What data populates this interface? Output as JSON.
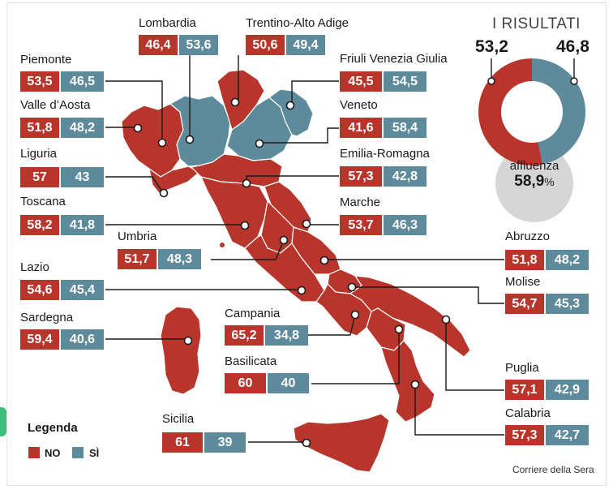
{
  "results": {
    "title": "I RISULTATI",
    "no_total": "53,2",
    "si_total": "46,8",
    "no_fraction": 0.532,
    "turnout_label": "affluenza",
    "turnout_value": "58,9",
    "turnout_unit": "%"
  },
  "regions": {
    "lombardia": {
      "name": "Lombardia",
      "no": "46,4",
      "si": "53,6"
    },
    "trentino": {
      "name": "Trentino-Alto Adige",
      "no": "50,6",
      "si": "49,4"
    },
    "piemonte": {
      "name": "Piemonte",
      "no": "53,5",
      "si": "46,5"
    },
    "friuli": {
      "name": "Friuli Venezia Giulia",
      "no": "45,5",
      "si": "54,5"
    },
    "valle": {
      "name": "Valle d’Aosta",
      "no": "51,8",
      "si": "48,2"
    },
    "veneto": {
      "name": "Veneto",
      "no": "41,6",
      "si": "58,4"
    },
    "liguria": {
      "name": "Liguria",
      "no": "57",
      "si": "43"
    },
    "emilia": {
      "name": "Emilia-Romagna",
      "no": "57,3",
      "si": "42,8"
    },
    "toscana": {
      "name": "Toscana",
      "no": "58,2",
      "si": "41,8"
    },
    "marche": {
      "name": "Marche",
      "no": "53,7",
      "si": "46,3"
    },
    "umbria": {
      "name": "Umbria",
      "no": "51,7",
      "si": "48,3"
    },
    "abruzzo": {
      "name": "Abruzzo",
      "no": "51,8",
      "si": "48,2"
    },
    "lazio": {
      "name": "Lazio",
      "no": "54,6",
      "si": "45,4"
    },
    "molise": {
      "name": "Molise",
      "no": "54,7",
      "si": "45,3"
    },
    "sardegna": {
      "name": "Sardegna",
      "no": "59,4",
      "si": "40,6"
    },
    "campania": {
      "name": "Campania",
      "no": "65,2",
      "si": "34,8"
    },
    "basilicata": {
      "name": "Basilicata",
      "no": "60",
      "si": "40"
    },
    "puglia": {
      "name": "Puglia",
      "no": "57,1",
      "si": "42,9"
    },
    "calabria": {
      "name": "Calabria",
      "no": "57,3",
      "si": "42,7"
    },
    "sicilia": {
      "name": "Sicilia",
      "no": "61",
      "si": "39"
    }
  },
  "legend": {
    "title": "Legenda",
    "no_label": "NO",
    "si_label": "SÌ",
    "no_color": "#b8352b",
    "si_color": "#5d8b9b"
  },
  "credit": "Corriere della Sera",
  "colors": {
    "no": "#b8352b",
    "si": "#5d8b9b",
    "turnout_bg": "#d6d6d6"
  }
}
